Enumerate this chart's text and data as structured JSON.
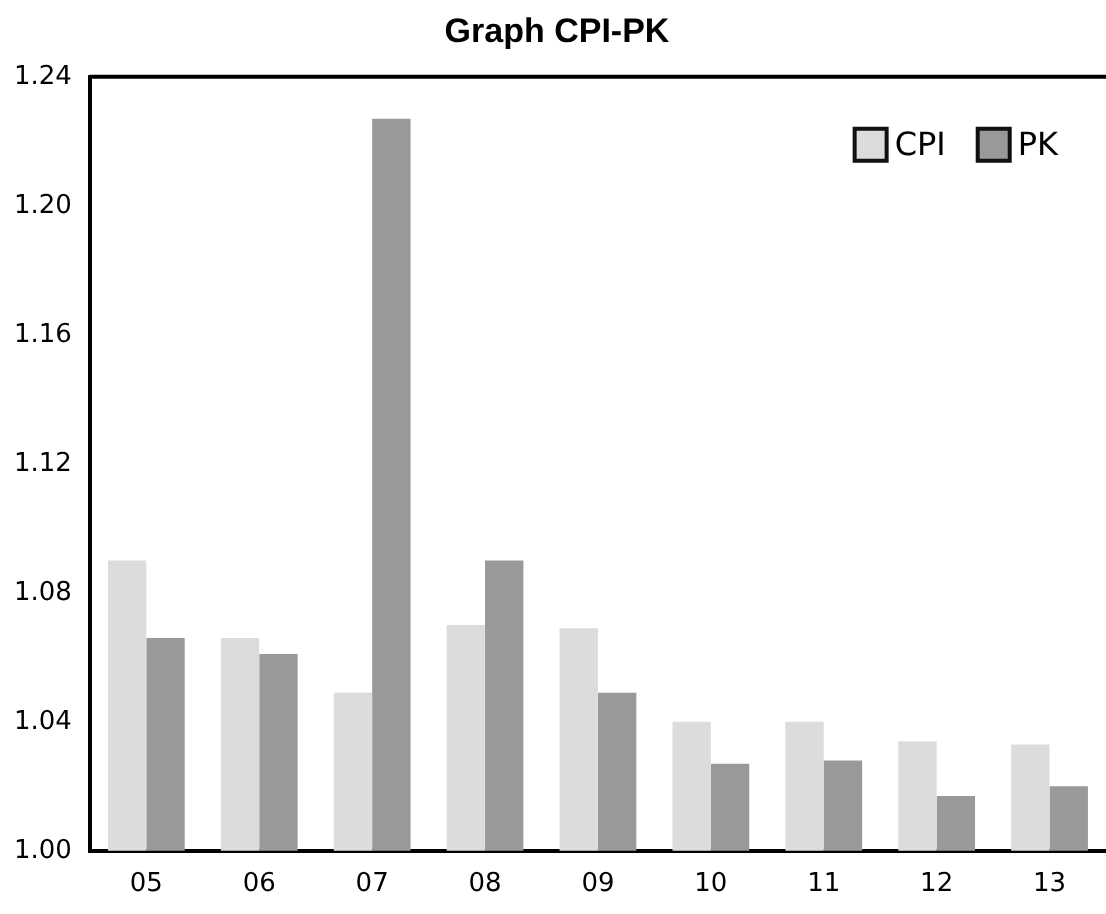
{
  "chart_data": {
    "type": "bar",
    "title": "Graph CPI-PK",
    "categories": [
      "05",
      "06",
      "07",
      "08",
      "09",
      "10",
      "11",
      "12",
      "13"
    ],
    "series": [
      {
        "name": "CPI",
        "color": "#dcdcdc",
        "values": [
          1.09,
          1.066,
          1.049,
          1.07,
          1.069,
          1.04,
          1.04,
          1.034,
          1.033
        ]
      },
      {
        "name": "PK",
        "color": "#999999",
        "values": [
          1.066,
          1.061,
          1.227,
          1.09,
          1.049,
          1.027,
          1.028,
          1.017,
          1.02
        ]
      }
    ],
    "ylim": [
      1.0,
      1.24
    ],
    "yticks": [
      {
        "value": 1,
        "label": "1.00"
      },
      1.04,
      1.08,
      1.12,
      1.16,
      {
        "value": 1.2,
        "label": "1.20"
      },
      1.24
    ],
    "grid": false,
    "legend": "top right"
  }
}
